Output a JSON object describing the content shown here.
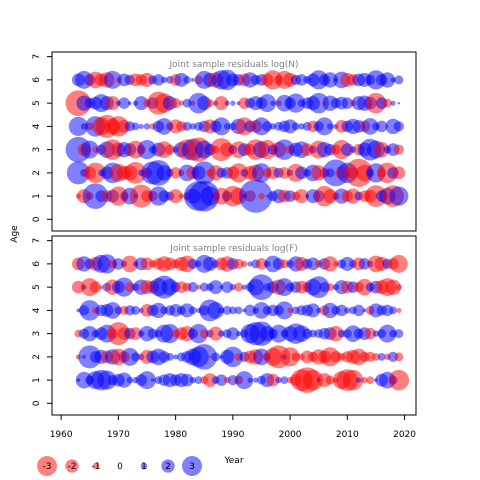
{
  "chart_data": {
    "type": "scatter",
    "kind": "bubble residual plot",
    "ylabel": "Age",
    "xlabel": "Year",
    "colors": {
      "positive": "#0000ff",
      "negative": "#ff0000"
    },
    "x_ticks": [
      "1960",
      "1970",
      "1980",
      "1990",
      "2000",
      "2010",
      "2020"
    ],
    "y_ticks": [
      "0",
      "1",
      "2",
      "3",
      "4",
      "5",
      "6",
      "7"
    ],
    "xlim": [
      1958.4,
      2022
    ],
    "ylim": [
      -0.5,
      7.2
    ],
    "years": [
      1963,
      2019
    ],
    "ages": [
      1,
      2,
      3,
      4,
      5,
      6
    ],
    "panels": [
      {
        "title": "Joint sample residuals log(N)",
        "residuals": {
          "1": [
            -0.4,
            -1.1,
            -0.6,
            2.0,
            0.9,
            -0.9,
            1.0,
            -1.5,
            -0.7,
            1.3,
            0.4,
            -1.8,
            -0.9,
            -0.8,
            1.5,
            0.9,
            0.7,
            -1.1,
            -0.4,
            -0.6,
            1.2,
            2.3,
            2.4,
            1.5,
            0.6,
            -1.3,
            0.8,
            -1.6,
            -1.3,
            0.3,
            -0.9,
            2.6,
            -0.5,
            0.2,
            0.8,
            1.1,
            -1.0,
            0.9,
            -0.7,
            -1.1,
            0.3,
            1.1,
            0.9,
            -1.6,
            -1.1,
            -0.6,
            1.2,
            -0.9,
            -1.2,
            0.7,
            -0.9,
            -1.0,
            -1.7,
            0.9,
            1.3,
            -1.7,
            1.5
          ],
          "2": [
            1.8,
            0.6,
            -1.0,
            -1.6,
            0.5,
            1.0,
            1.6,
            -1.4,
            -1.1,
            -1.2,
            -1.7,
            0.5,
            -0.8,
            1.8,
            2.0,
            1.2,
            0.6,
            -0.9,
            -0.5,
            1.3,
            -1.0,
            1.1,
            1.8,
            -0.6,
            -1.2,
            0.8,
            0.9,
            -1.0,
            -1.5,
            0.6,
            -1.1,
            -1.3,
            1.5,
            -0.7,
            -1.0,
            0.8,
            -0.9,
            0.5,
            -1.4,
            1.0,
            0.6,
            1.3,
            -1.2,
            -0.8,
            0.7,
            2.1,
            -1.0,
            1.6,
            -0.9,
            -2.2,
            -1.3,
            0.6,
            1.5,
            -0.7,
            -1.6,
            0.9,
            -1.0
          ],
          "3": [
            2.0,
            -1.0,
            1.4,
            -0.5,
            0.8,
            1.3,
            -1.6,
            -1.1,
            1.2,
            1.0,
            -1.4,
            -0.7,
            1.5,
            0.6,
            1.1,
            -1.3,
            -0.8,
            0.5,
            1.2,
            -1.6,
            1.7,
            -1.9,
            1.4,
            0.9,
            -0.6,
            -1.8,
            -1.1,
            0.7,
            -1.3,
            1.0,
            -0.9,
            -1.6,
            1.3,
            -1.5,
            0.8,
            -1.2,
            1.6,
            -0.7,
            1.1,
            1.3,
            -1.0,
            0.6,
            -1.4,
            1.2,
            0.9,
            -0.8,
            -1.5,
            1.0,
            0.5,
            -0.9,
            1.1,
            1.7,
            1.4,
            -1.2,
            0.6,
            1.0,
            -0.8
          ],
          "4": [
            1.5,
            0.5,
            -0.6,
            1.6,
            -1.4,
            -1.8,
            -1.2,
            -1.6,
            -1.0,
            0.8,
            0.6,
            0.4,
            0.5,
            -0.5,
            0.9,
            1.3,
            0.6,
            -1.1,
            -0.8,
            0.7,
            0.5,
            0.7,
            0.9,
            -1.1,
            0.9,
            1.4,
            0.5,
            0.6,
            1.2,
            -1.4,
            0.9,
            -1.0,
            1.4,
            0.8,
            0.5,
            0.7,
            0.9,
            1.1,
            0.6,
            0.5,
            0.7,
            -0.9,
            0.8,
            1.4,
            0.5,
            0.4,
            -1.0,
            0.9,
            1.2,
            1.0,
            -0.9,
            1.3,
            0.6,
            0.9,
            -0.2,
            1.2,
            0.8
          ],
          "5": [
            -2.0,
            1.2,
            0.8,
            1.0,
            1.4,
            1.1,
            -1.1,
            0.4,
            0.9,
            0.3,
            0.4,
            1.1,
            -0.6,
            0.9,
            -1.8,
            -1.5,
            1.1,
            -0.8,
            -0.4,
            0.7,
            -0.4,
            1.6,
            1.1,
            -0.6,
            0.4,
            -1.1,
            0.4,
            0.4,
            0.3,
            -0.9,
            0.8,
            1.1,
            0.9,
            1.4,
            0.4,
            -0.5,
            1.3,
            0.9,
            1.5,
            0.6,
            0.9,
            1.1,
            1.6,
            -0.3,
            1.2,
            0.8,
            1.0,
            0.9,
            -0.5,
            1.1,
            1.2,
            1.0,
            -1.6,
            0.9,
            -0.7,
            0.4,
            0.2
          ],
          "6": [
            1.0,
            1.4,
            0.9,
            -1.3,
            -1.0,
            -1.2,
            1.4,
            -0.4,
            1.0,
            0.8,
            -1.0,
            -0.9,
            -1.1,
            0.7,
            0.9,
            0.5,
            0.6,
            -0.9,
            1.1,
            0.6,
            0.3,
            -0.7,
            1.4,
            1.1,
            -1.2,
            1.5,
            1.6,
            1.0,
            0.9,
            -1.0,
            1.2,
            0.8,
            0.9,
            -1.0,
            -1.5,
            -0.7,
            -1.4,
            -1.1,
            0.8,
            0.9,
            0.6,
            1.0,
            1.5,
            0.9,
            1.2,
            0.3,
            1.3,
            -1.1,
            -0.9,
            1.0,
            1.1,
            0.8,
            1.5,
            0.9,
            1.2,
            0.4,
            0.7
          ]
        }
      },
      {
        "title": "Joint sample residuals log(F)",
        "residuals": {
          "1": [
            0.3,
            1.3,
            0.7,
            1.4,
            1.6,
            1.5,
            0.8,
            1.0,
            1.2,
            0.5,
            0.5,
            0.9,
            1.4,
            0.3,
            0.6,
            0.9,
            1.1,
            0.9,
            1.1,
            1.0,
            0.5,
            0.6,
            -0.6,
            -1.1,
            0.6,
            0.9,
            -0.5,
            0.8,
            -0.7,
            1.4,
            0.4,
            0.4,
            0.7,
            1.1,
            -1.0,
            0.5,
            0.6,
            -0.5,
            -0.9,
            -1.7,
            -2.0,
            -1.6,
            0.3,
            -1.1,
            -0.7,
            -0.4,
            -1.4,
            -1.7,
            -1.6,
            0.4,
            -0.5,
            -0.6,
            0.3,
            1.0,
            1.3,
            0.7,
            -1.6
          ],
          "2": [
            -0.4,
            0.3,
            1.8,
            0.9,
            1.1,
            -1.0,
            1.2,
            -1.3,
            -0.9,
            1.4,
            0.7,
            0.5,
            -1.1,
            1.0,
            1.3,
            0.9,
            0.6,
            0.4,
            0.7,
            0.9,
            1.3,
            1.6,
            2.0,
            -0.2,
            0.7,
            0.3,
            1.1,
            1.6,
            -0.6,
            0.8,
            -1.0,
            -1.2,
            1.3,
            0.6,
            -1.4,
            -1.8,
            0.4,
            -1.5,
            -0.7,
            -0.5,
            -1.0,
            -0.8,
            -1.2,
            -1.0,
            -1.5,
            -0.9,
            -0.6,
            -0.9,
            -1.1,
            -1.3,
            -0.8,
            -0.8,
            -0.6,
            0.6,
            -0.5,
            0.8,
            -0.7
          ],
          "3": [
            -0.6,
            0.8,
            1.2,
            0.6,
            1.0,
            1.4,
            -0.8,
            -1.8,
            -1.0,
            0.9,
            -1.0,
            0.5,
            1.2,
            0.8,
            0.6,
            1.4,
            1.5,
            -0.6,
            -1.0,
            -1.2,
            0.8,
            1.5,
            -0.7,
            0.6,
            -1.1,
            0.5,
            0.7,
            1.0,
            0.4,
            0.6,
            1.5,
            1.8,
            1.9,
            1.2,
            0.8,
            1.4,
            0.6,
            1.2,
            1.6,
            1.3,
            0.8,
            0.6,
            0.7,
            0.9,
            1.0,
            -1.2,
            0.6,
            0.7,
            1.3,
            0.8,
            1.0,
            -0.9,
            0.5,
            0.7,
            1.4,
            0.6,
            0.7
          ],
          "4": [
            0.3,
            0.8,
            1.6,
            -0.5,
            0.9,
            1.0,
            1.3,
            0.6,
            -0.7,
            0.8,
            0.7,
            0.4,
            -1.0,
            0.9,
            1.2,
            0.6,
            0.8,
            1.0,
            0.7,
            1.1,
            0.6,
            0.4,
            0.8,
            1.7,
            1.3,
            0.5,
            0.7,
            0.6,
            0.6,
            0.3,
            0.9,
            0.5,
            1.3,
            0.7,
            0.9,
            0.8,
            1.4,
            -0.4,
            0.6,
            0.8,
            0.9,
            1.1,
            0.4,
            -0.8,
            1.2,
            0.7,
            0.9,
            0.5,
            0.6,
            0.9,
            0.3,
            -0.7,
            1.1,
            0.8,
            0.9,
            0.6,
            -0.4
          ],
          "5": [
            -1.0,
            0.4,
            -1.4,
            -0.9,
            -0.3,
            0.7,
            -1.2,
            1.0,
            1.5,
            -0.8,
            0.6,
            1.2,
            -1.1,
            -1.0,
            1.4,
            1.8,
            1.3,
            0.8,
            -0.9,
            -0.7,
            0.8,
            -0.4,
            0.7,
            0.6,
            1.1,
            0.3,
            0.9,
            0.5,
            -0.7,
            0.4,
            0.7,
            1.3,
            2.0,
            0.6,
            0.9,
            -1.2,
            1.4,
            0.7,
            0.9,
            -1.0,
            -0.8,
            1.3,
            1.7,
            0.8,
            -0.6,
            0.5,
            1.1,
            -1.0,
            0.9,
            -0.8,
            -1.3,
            0.7,
            1.0,
            -1.1,
            -1.4,
            -1.2,
            -0.5
          ],
          "6": [
            -1.0,
            1.2,
            0.8,
            -1.1,
            1.4,
            1.5,
            -0.7,
            0.9,
            0.5,
            -1.3,
            0.4,
            1.0,
            -1.0,
            -0.6,
            -0.9,
            -1.2,
            -1.0,
            -0.7,
            -1.1,
            -1.3,
            0.8,
            0.5,
            1.4,
            1.1,
            0.6,
            -1.0,
            -1.2,
            0.9,
            -0.8,
            -0.5,
            0.4,
            0.7,
            -0.9,
            0.5,
            1.3,
            0.9,
            -0.7,
            0.6,
            1.2,
            -1.1,
            0.8,
            1.0,
            -0.6,
            0.9,
            -1.2,
            -0.4,
            0.7,
            1.1,
            0.6,
            -1.0,
            0.9,
            0.5,
            -1.3,
            -1.1,
            0.8,
            -0.9,
            -1.4
          ]
        }
      }
    ],
    "legend": [
      {
        "value": -3,
        "label": "-3"
      },
      {
        "value": -2,
        "label": "-2"
      },
      {
        "value": -1,
        "label": "-1"
      },
      {
        "value": 0,
        "label": "0"
      },
      {
        "value": 1,
        "label": "1"
      },
      {
        "value": 2,
        "label": "2"
      },
      {
        "value": 3,
        "label": "3"
      }
    ]
  }
}
